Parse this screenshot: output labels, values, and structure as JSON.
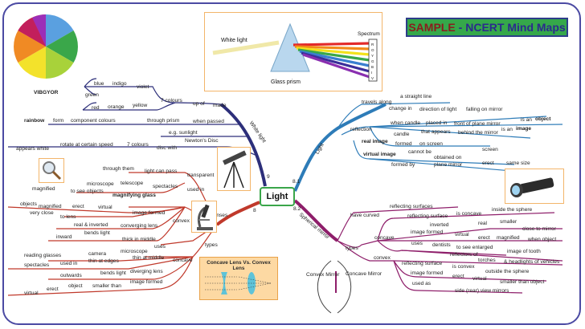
{
  "header": {
    "sample_word": "SAMPLE",
    "title_rest": "- NCERT Mind Maps"
  },
  "center": {
    "label": "Light"
  },
  "prism": {
    "white_light": "White light",
    "prism_label": "Glass prism",
    "spectrum_label": "Spectrum",
    "spectrum_letters": [
      "R",
      "O",
      "Y",
      "G",
      "B",
      "I",
      "V"
    ]
  },
  "colors": {
    "frame": "#4b4aa3",
    "reflection_branch": "#2e7cb8",
    "white_light_branch": "#3a3a8a",
    "lenses_branch": "#c0392b",
    "mirror_branch": "#8e1e6a",
    "sample_bg": "#35a84a"
  },
  "vibgyor": {
    "label": "VIBGYOR",
    "colors": [
      "violet",
      "indigo",
      "blue",
      "green",
      "yellow",
      "orange",
      "red"
    ]
  },
  "white_light": {
    "branch": "White light",
    "num": "9",
    "colors_list": [
      "blue",
      "indigo",
      "violet",
      "green",
      "red",
      "orange",
      "yellow"
    ],
    "seven_colours": "7 colours",
    "up_of": "up of",
    "made": "made",
    "rainbow": "rainbow",
    "form": "form",
    "component_colours": "component colours",
    "through_prism": "through prism",
    "when_passed": "when passed",
    "eg_sunlight": "e.g. sunlight",
    "appears_white": "appears white",
    "rotate": "rotate at certain speed",
    "seven_colours2": "7 colours",
    "disc_with": "disc with",
    "newtons_disc": "Newton's Disc"
  },
  "lenses": {
    "branch": "Lenses",
    "num": "8",
    "through_them": "through them",
    "light_can_pass": "light can pass",
    "transparent": "transparent",
    "microscope": "microscope",
    "telescope": "telescope",
    "spectacles": "spectacles",
    "used_in": "used in",
    "magnified": "magnified",
    "to_see_objects": "to see objects",
    "magnifying_glass": "magnifying glass",
    "objects": "objects",
    "magnified2": "magnified",
    "erect": "erect",
    "virtual": "virtual",
    "image_formed": "image formed",
    "very_close": "very close",
    "to_lens": "to lens",
    "real_inverted": "real & inverted",
    "converging_lens": "converging lens",
    "convex": "convex",
    "inward": "inward",
    "bends_light": "bends light",
    "thick_in_middle": "thick in middle",
    "uses": "uses",
    "types": "types",
    "reading_glasses": "reading glasses",
    "camera": "camera",
    "microscope2": "microscope",
    "spectacles2": "spectacles",
    "used_in2": "used in",
    "thin_at_edges": "thin at edges",
    "thin_at_middle": "thin at middle",
    "concave": "concave",
    "outwards": "outwards",
    "bends_light2": "bends light",
    "diverging_lens": "diverging lens",
    "virtual2": "virtual",
    "erect2": "erect",
    "object": "object",
    "smaller_than": "smaller than",
    "image_formed2": "image formed",
    "lens_box_title": "Concave Lens Vs. Convex Lens"
  },
  "reflection": {
    "branch": "Light",
    "num": "8.1",
    "travels_along": "travels along",
    "a_straight_line": "a straight line",
    "reflection": "reflection",
    "change_in": "change in",
    "direction_of_light": "direction of light",
    "falling_on_mirror": "falling on mirror",
    "when_candle": "when candle",
    "placed_in": "placed in",
    "front_of_plane_mirror": "front of plane mirror",
    "is_an": "is an",
    "object": "object",
    "candle": "candle",
    "that_appears": "that appears",
    "behind_the_mirror": "behind the mirror",
    "is_an2": "is an",
    "image": "image",
    "real_image": "real image",
    "formed": "formed",
    "on_screen": "on screen",
    "virtual_image": "virtual image",
    "cannot_be": "cannot be",
    "obtained_on": "obtained on",
    "screen": "screen",
    "formed_by": "formed by",
    "plane_mirror": "plane mirror",
    "erect": "erect",
    "same_size": "same size"
  },
  "mirror": {
    "branch": "Spherical mirror",
    "num": "8.2",
    "have_curved": "have curved",
    "reflecting_surfaces": "reflecting surfaces",
    "reflecting_surface": "reflecting surface",
    "is_concave": "is concave",
    "inside_the_sphere": "inside the sphere",
    "inverted": "inverted",
    "real": "real",
    "smaller": "smaller",
    "close_to_mirror": "close to mirror",
    "image_formed": "image formed",
    "virtual": "virtual",
    "erect": "erect",
    "magnified": "magnified",
    "when_object": "when object",
    "concave": "concave",
    "uses": "uses",
    "dentists": "dentists",
    "to_see_enlarged": "to see enlarged",
    "image_of_tooth": "image of tooth",
    "reflectors_of": "reflectors of",
    "torches": "torches",
    "headlights": "& headlights of vehicles",
    "types": "types",
    "convex": "convex",
    "reflecting_surface2": "reflecting surface",
    "is_convex": "is convex",
    "outside_the_sphere": "outside the sphere",
    "image_formed2": "image formed",
    "erect2": "erect",
    "virtual2": "virtual",
    "smaller_than_object": "smaller than object",
    "used_as": "used as",
    "side_rear": "side (rear) view mirrors",
    "convex_mirror": "Convex Mirror",
    "concave_mirror": "Concave Mirror"
  }
}
